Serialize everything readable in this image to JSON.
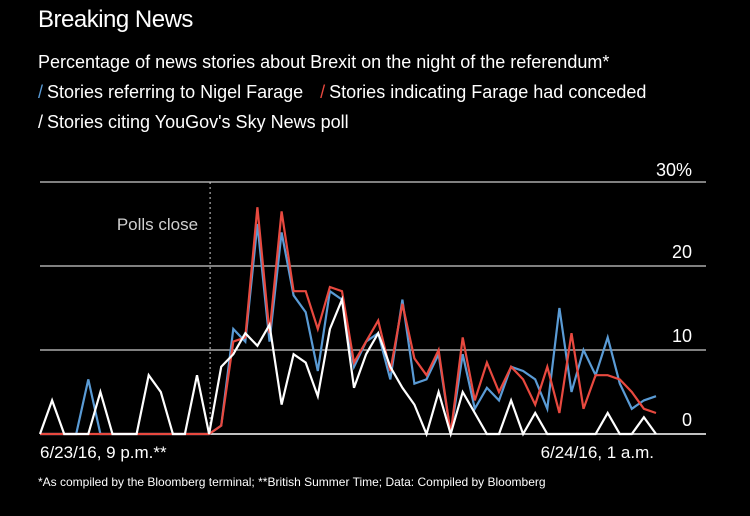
{
  "title": "Breaking News",
  "subtitle": "Percentage of news stories about Brexit on the night of the referendum*",
  "footnote": "*As compiled by the Bloomberg terminal; **British Summer Time; Data: Compiled by Bloomberg",
  "colors": {
    "background": "#000000",
    "text": "#ffffff",
    "grid": "#ffffff",
    "blue": "#5a9bd5",
    "red": "#e8493f",
    "white": "#ffffff",
    "annotation": "#cfcfcf"
  },
  "chart_data": {
    "type": "line",
    "title": "Breaking News",
    "subtitle": "Percentage of news stories about Brexit on the night of the referendum*",
    "xlabel": "",
    "ylabel": "",
    "ylim": [
      0,
      30
    ],
    "yticks": [
      0,
      10,
      20,
      30
    ],
    "ytick_labels": [
      "0",
      "10",
      "20",
      "30%"
    ],
    "x_labels": [
      {
        "index": 3,
        "text": "6/23/16, 9 p.m.**"
      },
      {
        "index": 51,
        "text": "6/24/16, 1 a.m."
      }
    ],
    "annotation": {
      "index": 14,
      "text": "Polls close"
    },
    "grid": true,
    "legend": "top-left",
    "series": [
      {
        "name": "Stories referring to Nigel Farage",
        "color": "blue",
        "values": [
          0,
          0,
          0,
          0,
          6.5,
          0,
          0,
          0,
          0,
          0,
          0,
          0,
          0,
          0,
          0,
          1,
          12.5,
          11,
          25,
          11,
          24,
          16.5,
          14.5,
          7.5,
          17,
          16,
          8,
          11,
          12,
          6.5,
          16,
          6,
          6.5,
          9.5,
          0,
          9.5,
          3,
          5.5,
          4,
          8,
          7.5,
          6.5,
          3,
          15,
          5,
          10,
          7,
          11.5,
          6,
          3,
          4,
          4.5
        ]
      },
      {
        "name": "Stories indicating Farage had conceded",
        "color": "red",
        "values": [
          0,
          0,
          0,
          0,
          0,
          0,
          0,
          0,
          0,
          0,
          0,
          0,
          0,
          0,
          0,
          1,
          11,
          11.5,
          27,
          12,
          26.5,
          17,
          17,
          12.5,
          17.5,
          17,
          8.5,
          11,
          13.5,
          7.5,
          15.5,
          9,
          7,
          10,
          0,
          11.5,
          4,
          8.5,
          5,
          8,
          6.5,
          3.5,
          8,
          2.5,
          12,
          3,
          7,
          7,
          6.5,
          5,
          3,
          2.5
        ]
      },
      {
        "name": "Stories citing YouGov's Sky News poll",
        "color": "white",
        "values": [
          0,
          4,
          0,
          0,
          0,
          5,
          0,
          0,
          0,
          7,
          5,
          0,
          0,
          7,
          0,
          8,
          9.5,
          12,
          10.5,
          13,
          3.5,
          9.5,
          8.5,
          4.5,
          12.5,
          16,
          5.5,
          9.5,
          12,
          8,
          5.5,
          3.5,
          0,
          5,
          0,
          5,
          2.5,
          0,
          0,
          4,
          0,
          2.5,
          0,
          0,
          0,
          0,
          0,
          2.5,
          0,
          0,
          2,
          0
        ]
      }
    ]
  }
}
